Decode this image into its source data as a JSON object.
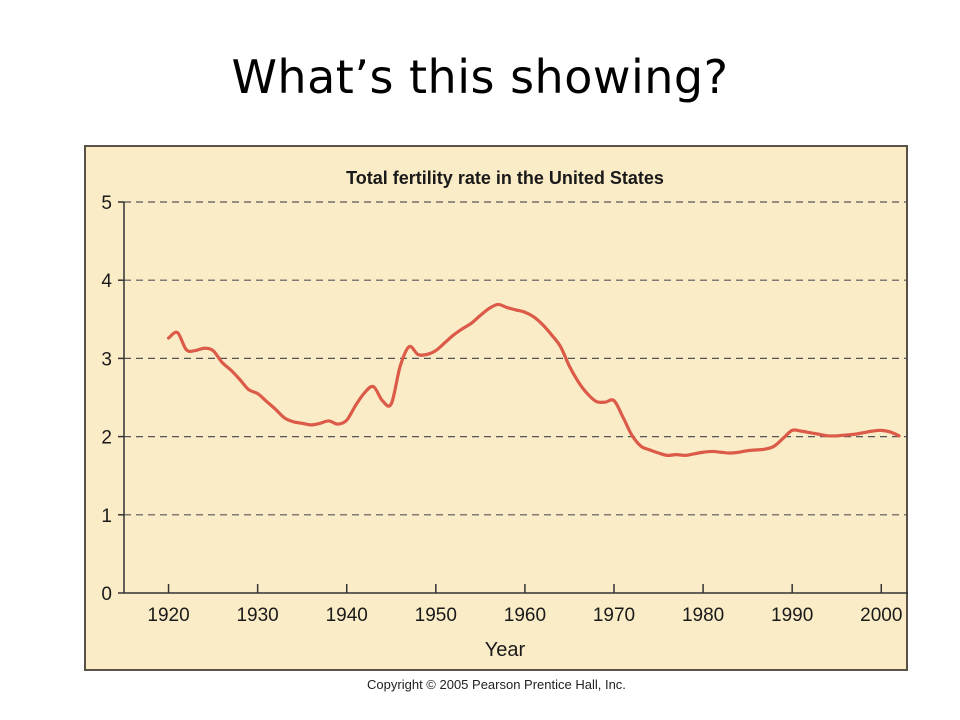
{
  "slide": {
    "title": "What’s this showing?",
    "copyright": "Copyright © 2005 Pearson Prentice Hall, Inc."
  },
  "colors": {
    "panel_background": "#fbecc8",
    "line": "#dc5a48",
    "grid": "#555555",
    "frame": "#5a5045"
  },
  "chart_data": {
    "type": "line",
    "title": "Total fertility rate in the United States",
    "xlabel": "Year",
    "ylabel": "",
    "xlim": [
      1915,
      2003
    ],
    "ylim": [
      0,
      5
    ],
    "x_ticks": [
      1920,
      1930,
      1940,
      1950,
      1960,
      1970,
      1980,
      1990,
      2000
    ],
    "y_ticks": [
      0,
      1,
      2,
      3,
      4,
      5
    ],
    "grid": "horizontal dashed",
    "legend": "none",
    "series": [
      {
        "x": [
          1920,
          1921,
          1922,
          1923,
          1924,
          1925,
          1926,
          1927,
          1928,
          1929,
          1930,
          1931,
          1932,
          1933,
          1934,
          1935,
          1936,
          1937,
          1938,
          1939,
          1940,
          1941,
          1942,
          1943,
          1944,
          1945,
          1946,
          1947,
          1948,
          1949,
          1950,
          1951,
          1952,
          1953,
          1954,
          1955,
          1956,
          1957,
          1958,
          1959,
          1960,
          1961,
          1962,
          1963,
          1964,
          1965,
          1966,
          1967,
          1968,
          1969,
          1970,
          1971,
          1972,
          1973,
          1974,
          1975,
          1976,
          1977,
          1978,
          1979,
          1980,
          1981,
          1982,
          1983,
          1984,
          1985,
          1986,
          1987,
          1988,
          1989,
          1990,
          1991,
          1992,
          1993,
          1994,
          1995,
          1996,
          1997,
          1998,
          1999,
          2000,
          2001,
          2002
        ],
        "values": [
          3.26,
          3.33,
          3.11,
          3.1,
          3.13,
          3.1,
          2.95,
          2.85,
          2.73,
          2.6,
          2.55,
          2.45,
          2.35,
          2.24,
          2.19,
          2.17,
          2.15,
          2.17,
          2.2,
          2.16,
          2.21,
          2.4,
          2.56,
          2.64,
          2.46,
          2.42,
          2.9,
          3.15,
          3.05,
          3.05,
          3.1,
          3.2,
          3.3,
          3.38,
          3.45,
          3.55,
          3.64,
          3.69,
          3.65,
          3.62,
          3.59,
          3.53,
          3.43,
          3.3,
          3.15,
          2.9,
          2.7,
          2.55,
          2.45,
          2.44,
          2.46,
          2.25,
          2.02,
          1.88,
          1.83,
          1.79,
          1.76,
          1.77,
          1.76,
          1.78,
          1.8,
          1.81,
          1.8,
          1.79,
          1.8,
          1.82,
          1.83,
          1.84,
          1.88,
          1.98,
          2.08,
          2.07,
          2.05,
          2.03,
          2.01,
          2.01,
          2.02,
          2.03,
          2.05,
          2.07,
          2.08,
          2.06,
          2.01
        ]
      }
    ]
  }
}
